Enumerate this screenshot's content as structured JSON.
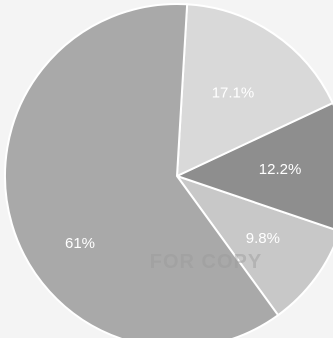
{
  "chart_data": {
    "type": "pie",
    "slices": [
      {
        "value": 61,
        "label": "61%",
        "color": "#a9a9a9"
      },
      {
        "value": 17.1,
        "label": "17.1%",
        "color": "#d9d9d9"
      },
      {
        "value": 12.2,
        "label": "12.2%",
        "color": "#8e8e8e"
      },
      {
        "value": 9.8,
        "label": "9.8%",
        "color": "#c8c8c8"
      }
    ],
    "slice_border_color": "#ffffff",
    "legend": "none"
  },
  "watermark": {
    "text": "FOR COPY"
  }
}
